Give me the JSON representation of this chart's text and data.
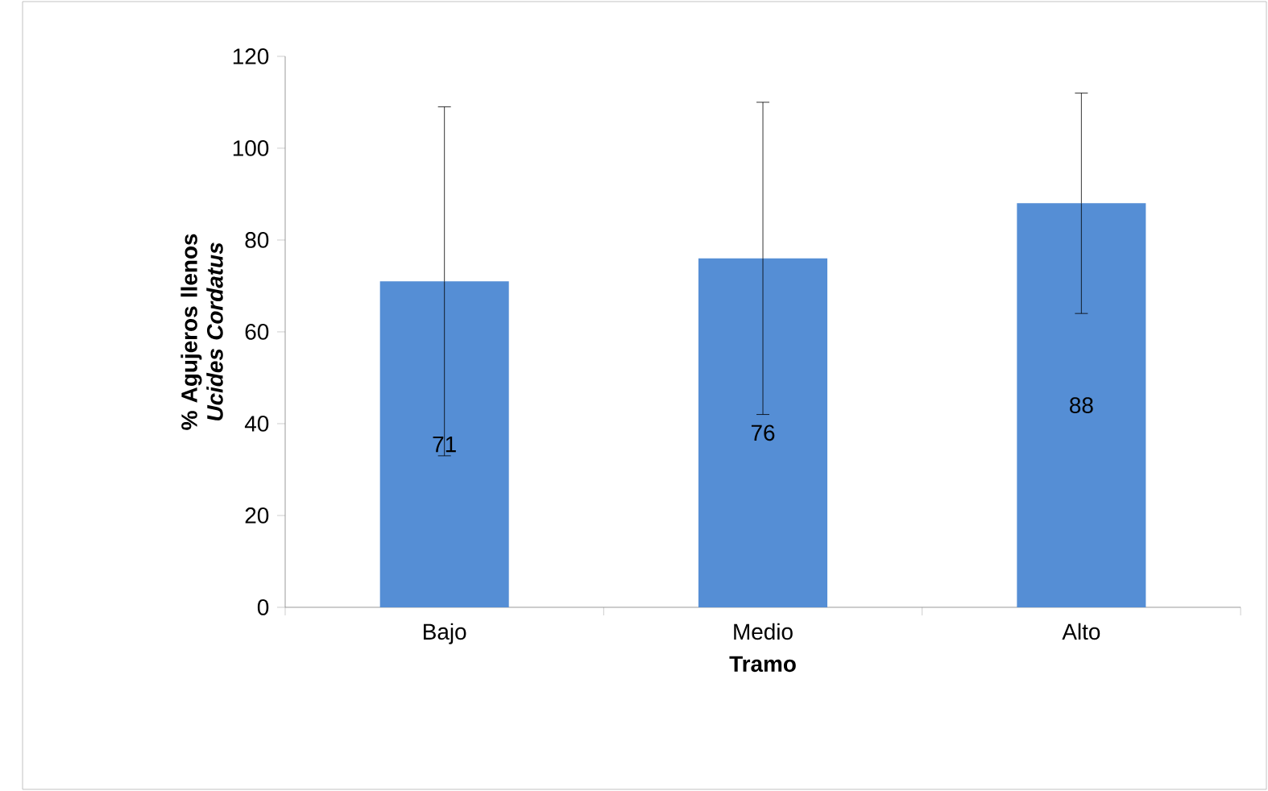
{
  "chart_data": {
    "type": "bar",
    "xlabel": "Tramo",
    "ylabel": "% Agujeros llenos *Ucides Cordatus*",
    "categories": [
      "Bajo",
      "Medio",
      "Alto"
    ],
    "values": [
      71,
      76,
      88
    ],
    "errors": [
      38,
      34,
      24
    ],
    "color": "#558ed5",
    "ylim": [
      0,
      120
    ],
    "yticks": [
      0,
      20,
      40,
      60,
      80,
      100,
      120
    ],
    "data_labels": true
  }
}
